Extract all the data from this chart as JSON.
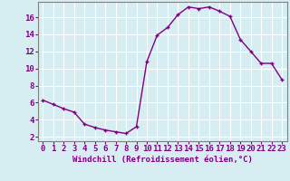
{
  "x": [
    0,
    1,
    2,
    3,
    4,
    5,
    6,
    7,
    8,
    9,
    10,
    11,
    12,
    13,
    14,
    15,
    16,
    17,
    18,
    19,
    20,
    21,
    22,
    23
  ],
  "y": [
    6.3,
    5.8,
    5.3,
    4.9,
    3.5,
    3.1,
    2.8,
    2.6,
    2.4,
    3.2,
    10.8,
    13.9,
    14.8,
    16.3,
    17.2,
    17.0,
    17.2,
    16.7,
    16.1,
    13.4,
    12.0,
    10.6,
    10.6,
    8.7
  ],
  "line_color": "#800080",
  "marker": "+",
  "bg_color": "#d6eef2",
  "grid_color": "#ffffff",
  "xlabel": "Windchill (Refroidissement éolien,°C)",
  "ylabel_ticks": [
    2,
    4,
    6,
    8,
    10,
    12,
    14,
    16
  ],
  "xtick_labels": [
    "0",
    "1",
    "2",
    "3",
    "4",
    "5",
    "6",
    "7",
    "8",
    "9",
    "10",
    "11",
    "12",
    "13",
    "14",
    "15",
    "16",
    "17",
    "18",
    "19",
    "20",
    "21",
    "22",
    "23"
  ],
  "xlim": [
    -0.5,
    23.5
  ],
  "ylim": [
    1.5,
    17.8
  ],
  "xlabel_fontsize": 6.5,
  "tick_fontsize": 6.5
}
